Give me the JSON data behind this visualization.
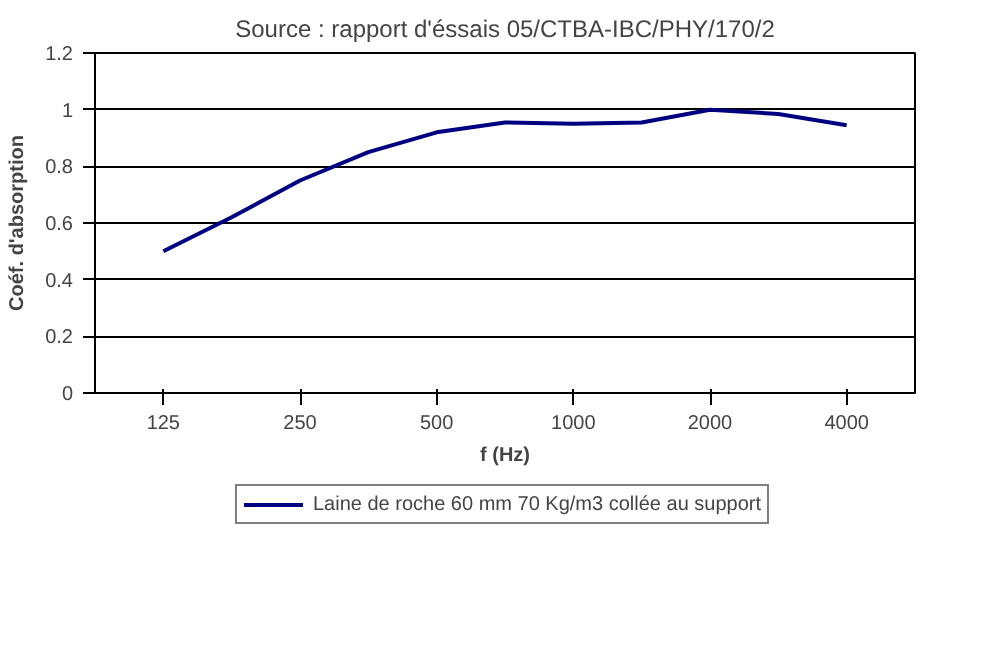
{
  "chart_data": {
    "type": "line",
    "title": "Source : rapport d'éssais 05/CTBA-IBC/PHY/170/2",
    "xlabel": "f (Hz)",
    "ylabel": "Coéf. d'absorption",
    "categories": [
      "125",
      null,
      "250",
      null,
      "500",
      null,
      "1000",
      null,
      "2000",
      null,
      "4000"
    ],
    "series": [
      {
        "name": "Laine de roche 60 mm 70 Kg/m3 collée au support",
        "color": "#000080",
        "values": [
          0.5,
          0.62,
          0.75,
          0.85,
          0.92,
          0.955,
          0.95,
          0.955,
          1.0,
          0.985,
          0.945
        ]
      }
    ],
    "ylim": [
      0,
      1.2
    ],
    "yticks": [
      0,
      0.2,
      0.4,
      0.6,
      0.8,
      1,
      1.2
    ],
    "grid": "y",
    "legend": "bottom",
    "marker": "none",
    "line_style": "solid"
  }
}
